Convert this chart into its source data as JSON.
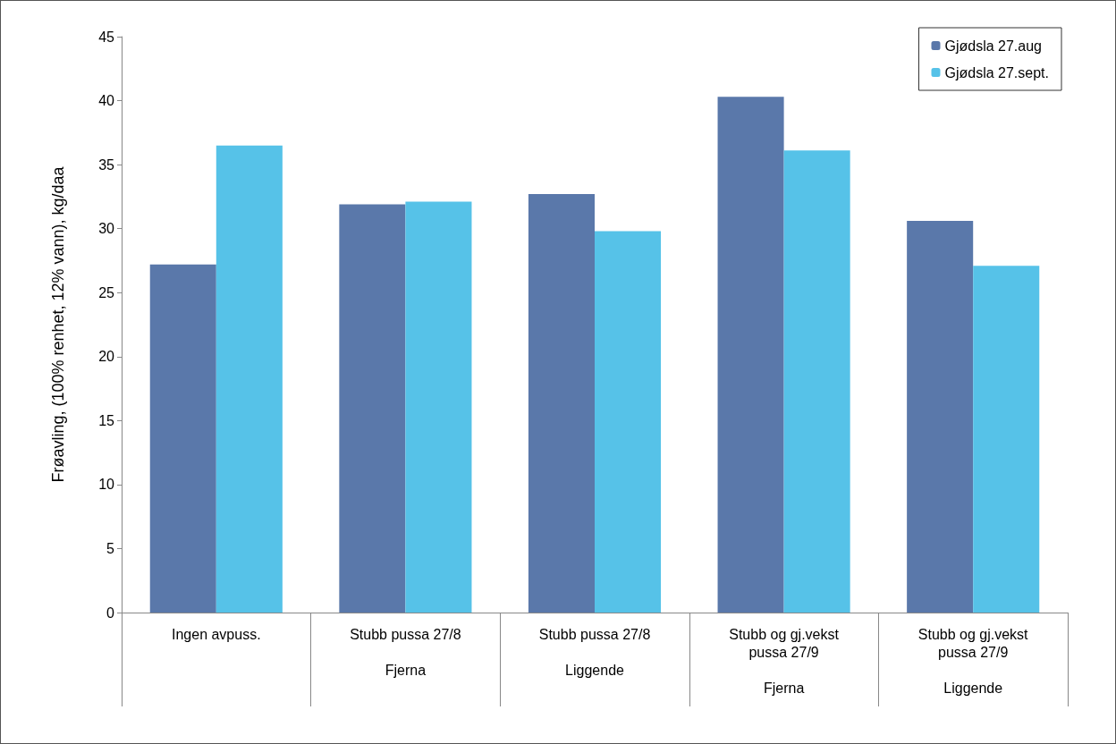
{
  "chart_data": {
    "type": "bar",
    "ylabel": "Frøavling, (100% renhet, 12% vann), kg/daa",
    "categories": [
      "Ingen avpuss.",
      "Stubb pussa 27/8\n\nFjerna",
      "Stubb pussa 27/8\n\nLiggende",
      "Stubb og gj.vekst\npussa 27/9\n\nFjerna",
      "Stubb og gj.vekst\npussa 27/9\n\nLiggende"
    ],
    "series": [
      {
        "name": "Gjødsla 27.aug",
        "color": "#5a78aa",
        "values": [
          27.2,
          31.9,
          32.7,
          40.3,
          30.6
        ]
      },
      {
        "name": "Gjødsla 27.sept.",
        "color": "#56c2e8",
        "values": [
          36.5,
          32.1,
          29.8,
          36.1,
          27.1
        ]
      }
    ],
    "ylim": [
      0,
      45
    ],
    "yticks": [
      0,
      5,
      10,
      15,
      20,
      25,
      30,
      35,
      40,
      45
    ],
    "grid": false,
    "legend": "top right"
  }
}
